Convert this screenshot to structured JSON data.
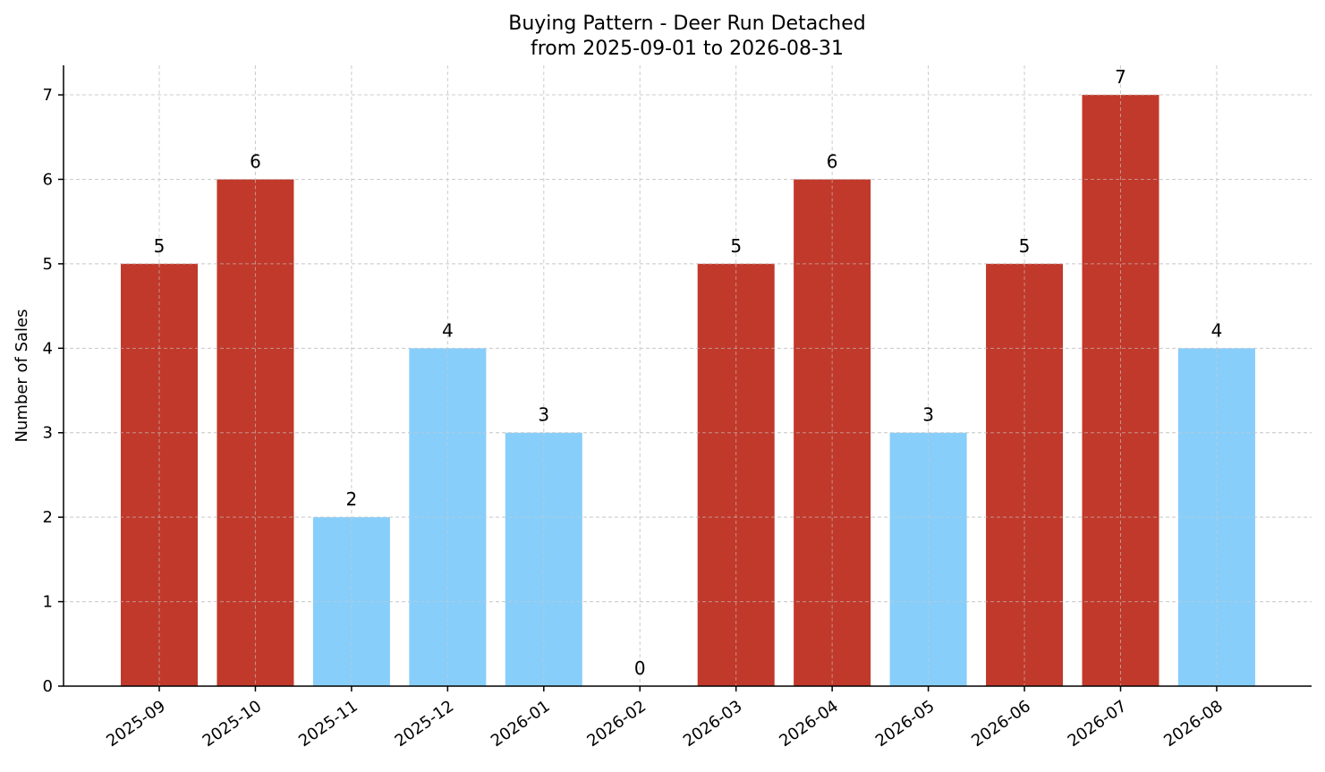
{
  "chart_data": {
    "type": "bar",
    "title": "Buying Pattern - Deer Run Detached",
    "subtitle": "from 2025-09-01 to 2026-08-31",
    "xlabel": "",
    "ylabel": "Number of Sales",
    "categories": [
      "2025-09",
      "2025-10",
      "2025-11",
      "2025-12",
      "2026-01",
      "2026-02",
      "2026-03",
      "2026-04",
      "2026-05",
      "2026-06",
      "2026-07",
      "2026-08"
    ],
    "values": [
      5,
      6,
      2,
      4,
      3,
      0,
      5,
      6,
      3,
      5,
      7,
      4
    ],
    "bar_colors": [
      "#c0392b",
      "#c0392b",
      "#87cefa",
      "#87cefa",
      "#87cefa",
      "#87cefa",
      "#c0392b",
      "#c0392b",
      "#87cefa",
      "#c0392b",
      "#c0392b",
      "#87cefa"
    ],
    "ylim": [
      0,
      7.35
    ],
    "yticks": [
      0,
      1,
      2,
      3,
      4,
      5,
      6,
      7
    ],
    "grid": true,
    "legend": "none"
  }
}
